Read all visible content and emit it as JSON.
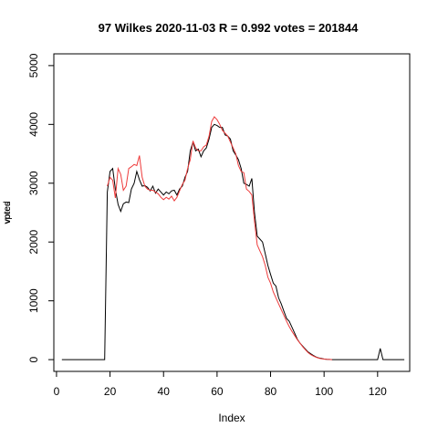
{
  "chart_data": {
    "type": "line",
    "title": "97 Wilkes 2020-11-03 R = 0.992 votes = 201844",
    "xlabel": "Index",
    "ylabel": "vpred\nvotes",
    "xlim": [
      -1,
      132
    ],
    "ylim": [
      -200,
      5200
    ],
    "x_ticks": [
      0,
      20,
      40,
      60,
      80,
      100,
      120
    ],
    "y_ticks": [
      0,
      1000,
      2000,
      3000,
      4000,
      5000
    ],
    "series": [
      {
        "color": "#000000",
        "points": [
          [
            2,
            0
          ],
          [
            18,
            0
          ],
          [
            19,
            2850
          ],
          [
            20,
            3200
          ],
          [
            21,
            3250
          ],
          [
            22,
            2900
          ],
          [
            23,
            2640
          ],
          [
            24,
            2520
          ],
          [
            25,
            2650
          ],
          [
            26,
            2680
          ],
          [
            27,
            2670
          ],
          [
            28,
            2900
          ],
          [
            29,
            3000
          ],
          [
            30,
            3200
          ],
          [
            31,
            3060
          ],
          [
            32,
            2950
          ],
          [
            33,
            2960
          ],
          [
            34,
            2930
          ],
          [
            35,
            2870
          ],
          [
            36,
            2950
          ],
          [
            37,
            2830
          ],
          [
            38,
            2900
          ],
          [
            39,
            2850
          ],
          [
            40,
            2800
          ],
          [
            41,
            2850
          ],
          [
            42,
            2820
          ],
          [
            43,
            2870
          ],
          [
            44,
            2880
          ],
          [
            45,
            2800
          ],
          [
            46,
            2900
          ],
          [
            47,
            2950
          ],
          [
            48,
            3100
          ],
          [
            49,
            3200
          ],
          [
            50,
            3550
          ],
          [
            51,
            3700
          ],
          [
            52,
            3550
          ],
          [
            53,
            3580
          ],
          [
            54,
            3450
          ],
          [
            55,
            3550
          ],
          [
            56,
            3600
          ],
          [
            57,
            3750
          ],
          [
            58,
            3950
          ],
          [
            59,
            4000
          ],
          [
            60,
            3980
          ],
          [
            61,
            3950
          ],
          [
            62,
            3950
          ],
          [
            63,
            3820
          ],
          [
            64,
            3800
          ],
          [
            65,
            3750
          ],
          [
            66,
            3550
          ],
          [
            67,
            3480
          ],
          [
            68,
            3400
          ],
          [
            69,
            3250
          ],
          [
            70,
            3000
          ],
          [
            71,
            2980
          ],
          [
            72,
            2950
          ],
          [
            73,
            3080
          ],
          [
            74,
            2500
          ],
          [
            75,
            2100
          ],
          [
            76,
            2050
          ],
          [
            77,
            2000
          ],
          [
            78,
            1800
          ],
          [
            79,
            1600
          ],
          [
            80,
            1450
          ],
          [
            81,
            1300
          ],
          [
            82,
            1250
          ],
          [
            83,
            1050
          ],
          [
            84,
            950
          ],
          [
            85,
            820
          ],
          [
            86,
            700
          ],
          [
            87,
            650
          ],
          [
            88,
            550
          ],
          [
            89,
            450
          ],
          [
            90,
            350
          ],
          [
            91,
            280
          ],
          [
            92,
            230
          ],
          [
            93,
            180
          ],
          [
            94,
            130
          ],
          [
            95,
            100
          ],
          [
            96,
            70
          ],
          [
            97,
            45
          ],
          [
            98,
            30
          ],
          [
            99,
            20
          ],
          [
            100,
            10
          ],
          [
            101,
            5
          ],
          [
            102,
            3
          ],
          [
            103,
            0
          ],
          [
            120,
            0
          ],
          [
            121,
            190
          ],
          [
            122,
            0
          ],
          [
            130,
            0
          ]
        ]
      },
      {
        "color": "#ee3b3b",
        "points": [
          [
            19,
            2950
          ],
          [
            20,
            3100
          ],
          [
            21,
            3050
          ],
          [
            22,
            2750
          ],
          [
            23,
            3250
          ],
          [
            24,
            3150
          ],
          [
            25,
            2880
          ],
          [
            26,
            2950
          ],
          [
            27,
            3250
          ],
          [
            28,
            3280
          ],
          [
            29,
            3320
          ],
          [
            30,
            3300
          ],
          [
            31,
            3470
          ],
          [
            32,
            3100
          ],
          [
            33,
            2950
          ],
          [
            34,
            2900
          ],
          [
            35,
            2880
          ],
          [
            36,
            2880
          ],
          [
            37,
            2850
          ],
          [
            38,
            2820
          ],
          [
            39,
            2760
          ],
          [
            40,
            2720
          ],
          [
            41,
            2760
          ],
          [
            42,
            2730
          ],
          [
            43,
            2780
          ],
          [
            44,
            2700
          ],
          [
            45,
            2760
          ],
          [
            46,
            2870
          ],
          [
            47,
            2980
          ],
          [
            48,
            3050
          ],
          [
            49,
            3250
          ],
          [
            50,
            3400
          ],
          [
            51,
            3720
          ],
          [
            52,
            3600
          ],
          [
            53,
            3550
          ],
          [
            54,
            3550
          ],
          [
            55,
            3620
          ],
          [
            56,
            3650
          ],
          [
            57,
            3800
          ],
          [
            58,
            4050
          ],
          [
            59,
            4130
          ],
          [
            60,
            4080
          ],
          [
            61,
            4000
          ],
          [
            62,
            3900
          ],
          [
            63,
            3850
          ],
          [
            64,
            3800
          ],
          [
            65,
            3700
          ],
          [
            66,
            3600
          ],
          [
            67,
            3500
          ],
          [
            68,
            3300
          ],
          [
            69,
            3200
          ],
          [
            70,
            3180
          ],
          [
            71,
            2900
          ],
          [
            72,
            2860
          ],
          [
            73,
            2800
          ],
          [
            74,
            2350
          ],
          [
            75,
            1950
          ],
          [
            76,
            1850
          ],
          [
            77,
            1750
          ],
          [
            78,
            1600
          ],
          [
            79,
            1400
          ],
          [
            80,
            1300
          ],
          [
            81,
            1150
          ],
          [
            82,
            1050
          ],
          [
            83,
            950
          ],
          [
            84,
            850
          ],
          [
            85,
            750
          ],
          [
            86,
            650
          ],
          [
            87,
            560
          ],
          [
            88,
            480
          ],
          [
            89,
            410
          ],
          [
            90,
            340
          ],
          [
            91,
            280
          ],
          [
            92,
            220
          ],
          [
            93,
            170
          ],
          [
            94,
            120
          ],
          [
            95,
            85
          ],
          [
            96,
            60
          ],
          [
            97,
            40
          ],
          [
            98,
            25
          ],
          [
            99,
            15
          ],
          [
            100,
            10
          ],
          [
            101,
            5
          ],
          [
            102,
            3
          ],
          [
            103,
            0
          ]
        ]
      }
    ]
  }
}
